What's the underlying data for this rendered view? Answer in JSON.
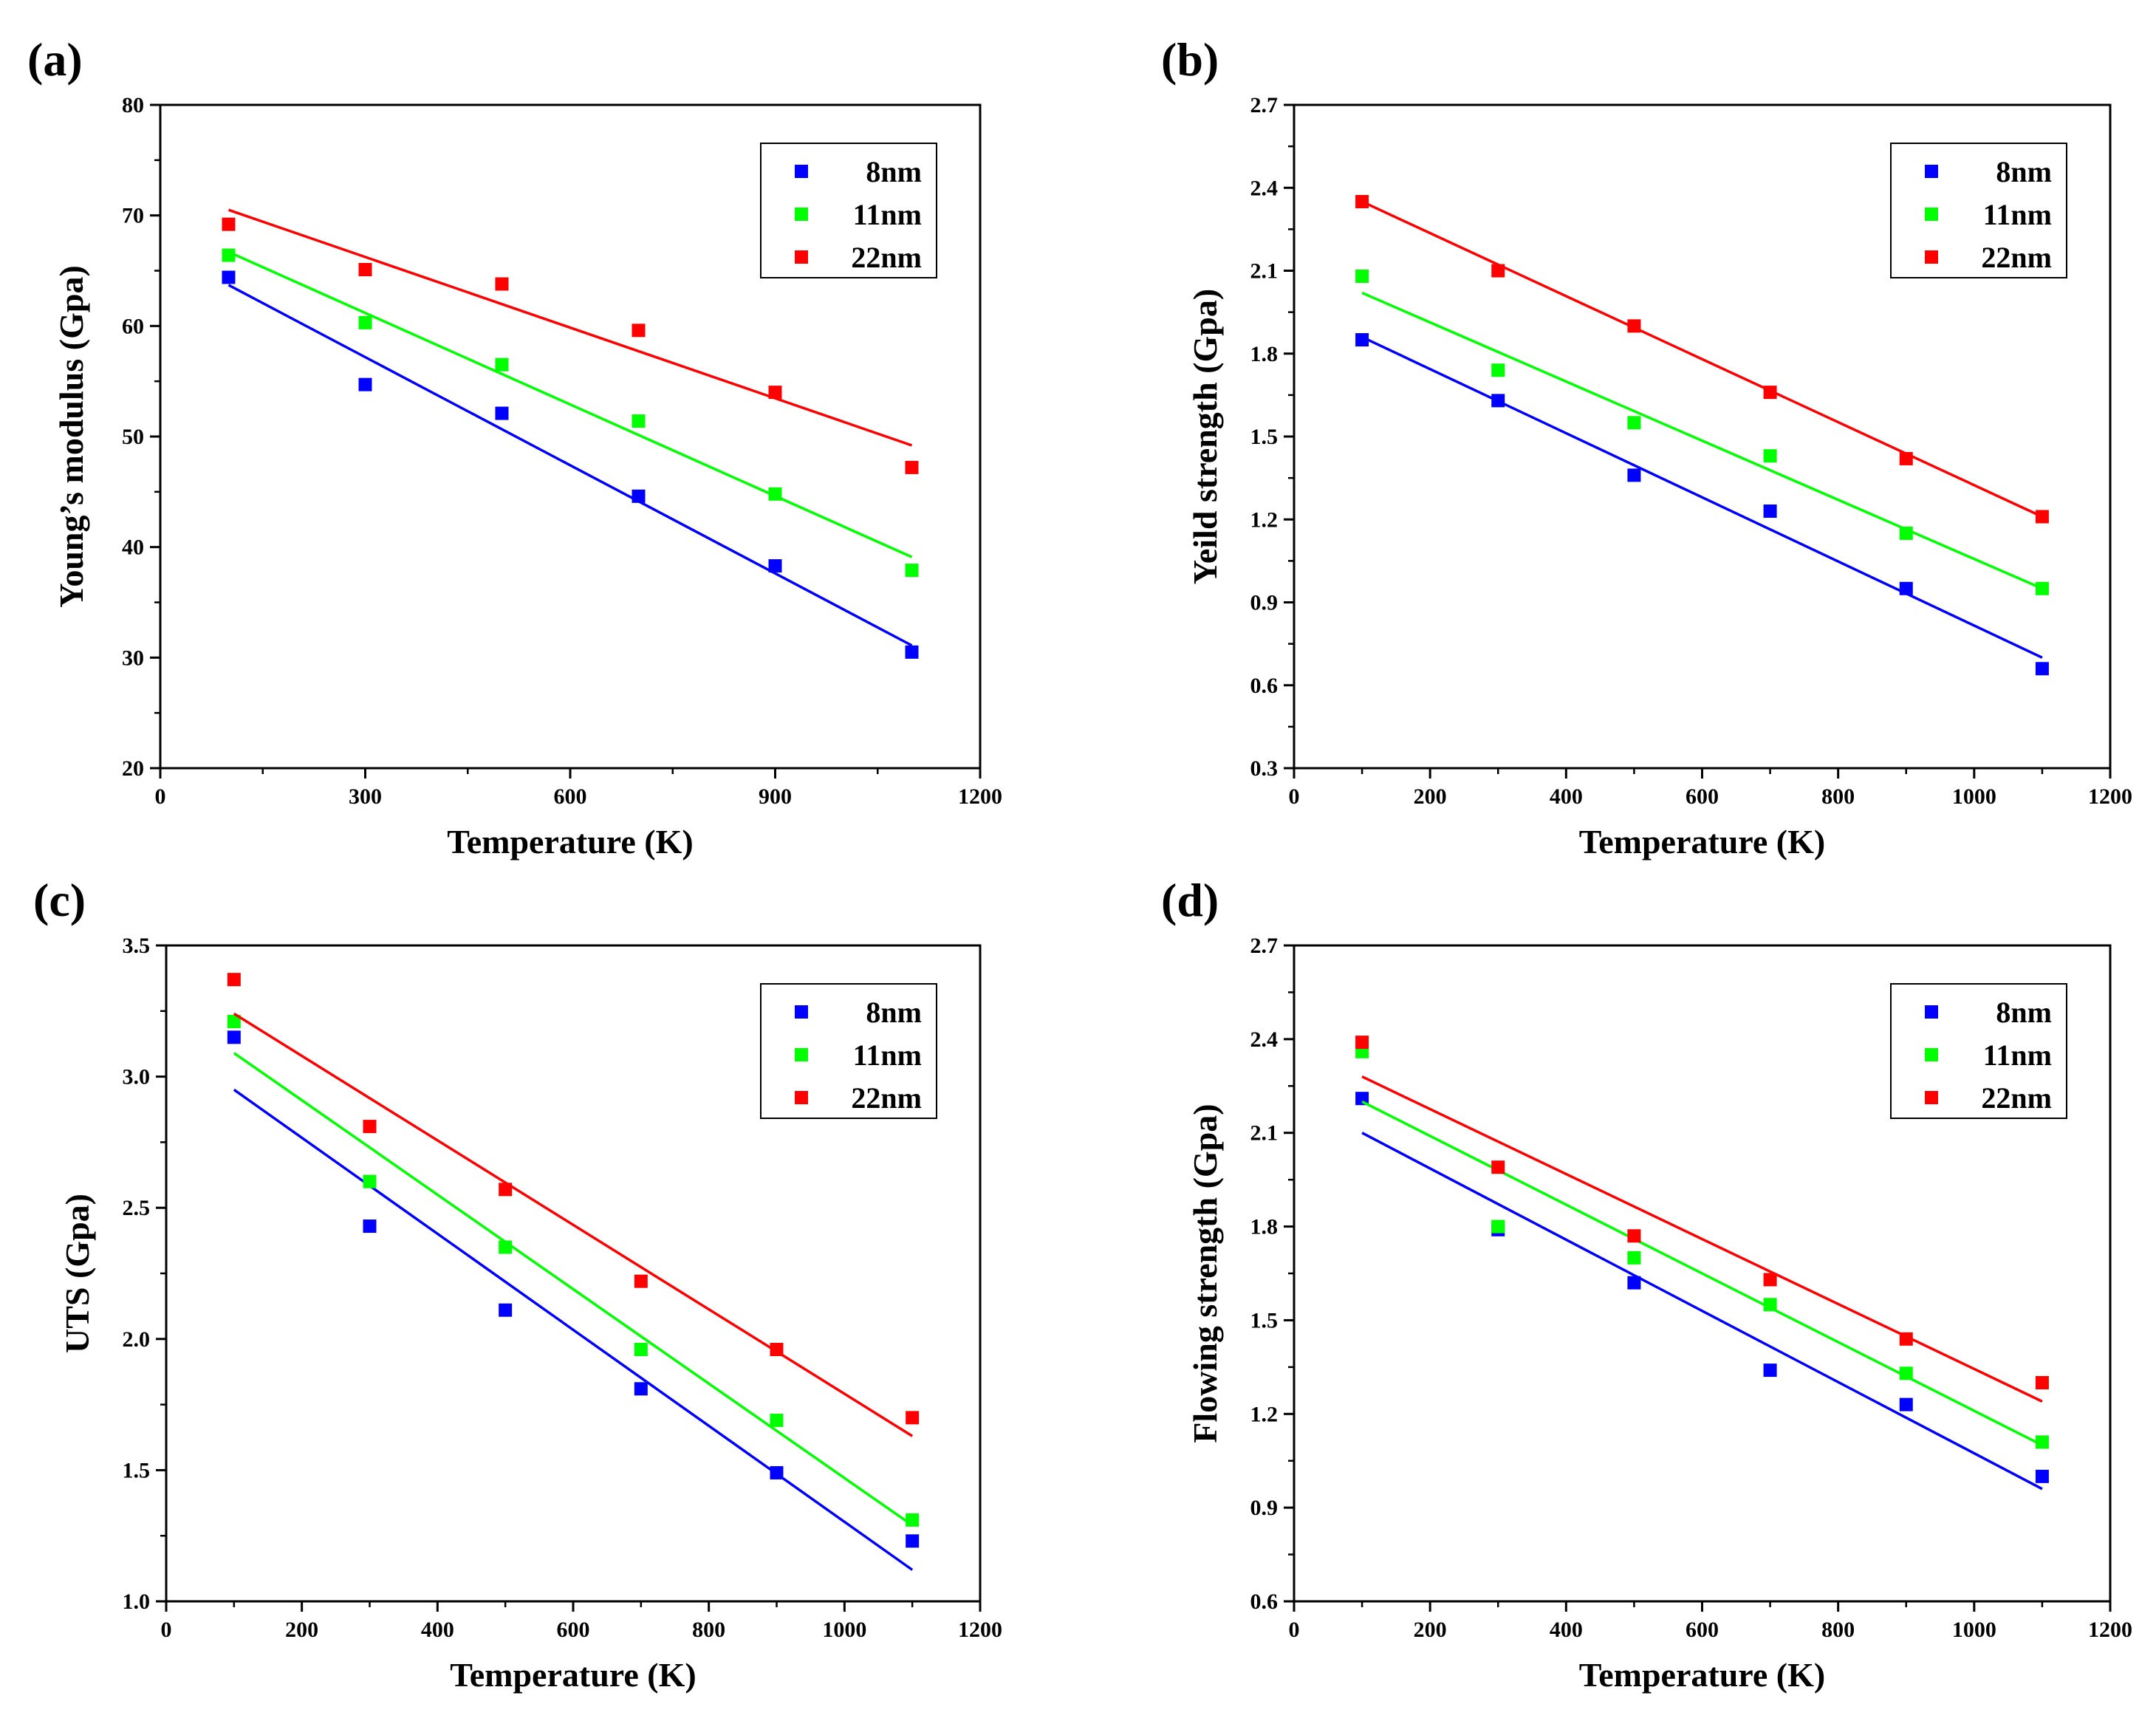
{
  "chart_data": [
    {
      "type": "scatter",
      "panel_label": "(a)",
      "xlabel": "Temperature (K)",
      "ylabel": "Young’s modulus (Gpa)",
      "xlim": [
        0,
        1200
      ],
      "ylim": [
        20,
        80
      ],
      "xticks": [
        0,
        300,
        600,
        900,
        1200
      ],
      "yticks": [
        20,
        30,
        40,
        50,
        60,
        70,
        80
      ],
      "legend_position": "top-right",
      "series": [
        {
          "name": "8nm",
          "color": "#0000ff",
          "x": [
            100,
            300,
            500,
            700,
            900,
            1100
          ],
          "y": [
            64.4,
            54.7,
            52.1,
            44.6,
            38.3,
            30.5
          ],
          "fit": [
            [
              100,
              63.7
            ],
            [
              1100,
              31.1
            ]
          ]
        },
        {
          "name": "11nm",
          "color": "#00ff00",
          "x": [
            100,
            300,
            500,
            700,
            900,
            1100
          ],
          "y": [
            66.4,
            60.3,
            56.5,
            51.4,
            44.8,
            37.9
          ],
          "fit": [
            [
              100,
              66.7
            ],
            [
              1100,
              39.1
            ]
          ]
        },
        {
          "name": "22nm",
          "color": "#ff0000",
          "x": [
            100,
            300,
            500,
            700,
            900,
            1100
          ],
          "y": [
            69.2,
            65.1,
            63.8,
            59.6,
            54.0,
            47.2
          ],
          "fit": [
            [
              100,
              70.5
            ],
            [
              1100,
              49.2
            ]
          ]
        }
      ]
    },
    {
      "type": "scatter",
      "panel_label": "(b)",
      "xlabel": "Temperature (K)",
      "ylabel": "Yeild strength (Gpa)",
      "xlim": [
        0,
        1200
      ],
      "ylim": [
        0.3,
        2.7
      ],
      "xticks": [
        0,
        200,
        400,
        600,
        800,
        1000,
        1200
      ],
      "yticks": [
        0.3,
        0.6,
        0.9,
        1.2,
        1.5,
        1.8,
        2.1,
        2.4,
        2.7
      ],
      "legend_position": "top-right",
      "series": [
        {
          "name": "8nm",
          "color": "#0000ff",
          "x": [
            100,
            300,
            500,
            700,
            900,
            1100
          ],
          "y": [
            1.85,
            1.63,
            1.36,
            1.23,
            0.95,
            0.66
          ],
          "fit": [
            [
              100,
              1.86
            ],
            [
              1100,
              0.7
            ]
          ]
        },
        {
          "name": "11nm",
          "color": "#00ff00",
          "x": [
            100,
            300,
            500,
            700,
            900,
            1100
          ],
          "y": [
            2.08,
            1.74,
            1.55,
            1.43,
            1.15,
            0.95
          ],
          "fit": [
            [
              100,
              2.02
            ],
            [
              1100,
              0.95
            ]
          ]
        },
        {
          "name": "22nm",
          "color": "#ff0000",
          "x": [
            100,
            300,
            500,
            700,
            900,
            1100
          ],
          "y": [
            2.35,
            2.1,
            1.9,
            1.66,
            1.42,
            1.21
          ],
          "fit": [
            [
              100,
              2.35
            ],
            [
              1100,
              1.21
            ]
          ]
        }
      ]
    },
    {
      "type": "scatter",
      "panel_label": "(c)",
      "xlabel": "Temperature (K)",
      "ylabel": "UTS (Gpa)",
      "xlim": [
        0,
        1200
      ],
      "ylim": [
        1.0,
        3.5
      ],
      "xticks": [
        0,
        200,
        400,
        600,
        800,
        1000,
        1200
      ],
      "yticks": [
        1.0,
        1.5,
        2.0,
        2.5,
        3.0,
        3.5
      ],
      "legend_position": "top-right",
      "series": [
        {
          "name": "8nm",
          "color": "#0000ff",
          "x": [
            100,
            300,
            500,
            700,
            900,
            1100
          ],
          "y": [
            3.15,
            2.43,
            2.11,
            1.81,
            1.49,
            1.23
          ],
          "fit": [
            [
              100,
              2.95
            ],
            [
              1100,
              1.12
            ]
          ]
        },
        {
          "name": "11nm",
          "color": "#00ff00",
          "x": [
            100,
            300,
            500,
            700,
            900,
            1100
          ],
          "y": [
            3.21,
            2.6,
            2.35,
            1.96,
            1.69,
            1.31
          ],
          "fit": [
            [
              100,
              3.09
            ],
            [
              1100,
              1.29
            ]
          ]
        },
        {
          "name": "22nm",
          "color": "#ff0000",
          "x": [
            100,
            300,
            500,
            700,
            900,
            1100
          ],
          "y": [
            3.37,
            2.81,
            2.57,
            2.22,
            1.96,
            1.7
          ],
          "fit": [
            [
              100,
              3.24
            ],
            [
              1100,
              1.63
            ]
          ]
        }
      ]
    },
    {
      "type": "scatter",
      "panel_label": "(d)",
      "xlabel": "Temperature (K)",
      "ylabel": "Flowing strength (Gpa)",
      "xlim": [
        0,
        1200
      ],
      "ylim": [
        0.6,
        2.7
      ],
      "xticks": [
        0,
        200,
        400,
        600,
        800,
        1000,
        1200
      ],
      "yticks": [
        0.6,
        0.9,
        1.2,
        1.5,
        1.8,
        2.1,
        2.4,
        2.7
      ],
      "legend_position": "top-right",
      "series": [
        {
          "name": "8nm",
          "color": "#0000ff",
          "x": [
            100,
            300,
            500,
            700,
            900,
            1100
          ],
          "y": [
            2.21,
            1.79,
            1.62,
            1.34,
            1.23,
            1.0
          ],
          "fit": [
            [
              100,
              2.1
            ],
            [
              1100,
              0.96
            ]
          ]
        },
        {
          "name": "11nm",
          "color": "#00ff00",
          "x": [
            100,
            300,
            500,
            700,
            900,
            1100
          ],
          "y": [
            2.36,
            1.8,
            1.7,
            1.55,
            1.33,
            1.11
          ],
          "fit": [
            [
              100,
              2.2
            ],
            [
              1100,
              1.1
            ]
          ]
        },
        {
          "name": "22nm",
          "color": "#ff0000",
          "x": [
            100,
            300,
            500,
            700,
            900,
            1100
          ],
          "y": [
            2.39,
            1.99,
            1.77,
            1.63,
            1.44,
            1.3
          ],
          "fit": [
            [
              100,
              2.28
            ],
            [
              1100,
              1.24
            ]
          ]
        }
      ]
    }
  ]
}
